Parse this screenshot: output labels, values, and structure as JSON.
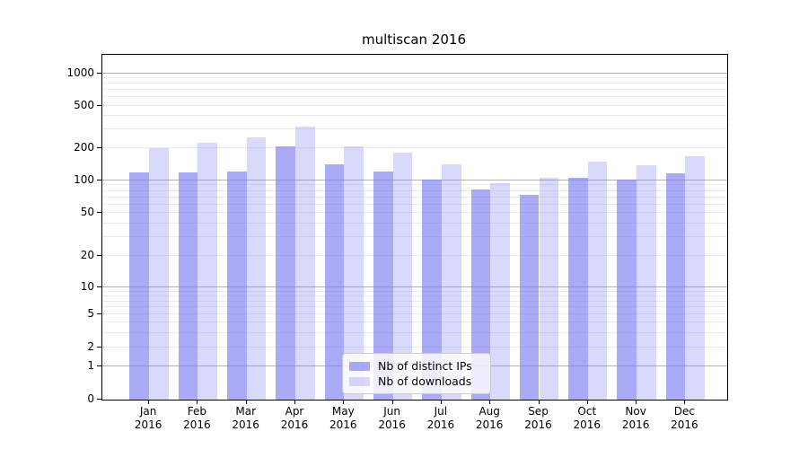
{
  "chart_data": {
    "type": "bar",
    "title": "multiscan 2016",
    "x_months": [
      "Jan",
      "Feb",
      "Mar",
      "Apr",
      "May",
      "Jun",
      "Jul",
      "Aug",
      "Sep",
      "Oct",
      "Nov",
      "Dec"
    ],
    "x_year": "2016",
    "series": [
      {
        "name": "Nb of distinct IPs",
        "color": "rgba(120,120,240,0.63)",
        "values": [
          120,
          120,
          122,
          206,
          141,
          121,
          102,
          83,
          74,
          107,
          102,
          117
        ]
      },
      {
        "name": "Nb of downloads",
        "color": "rgba(120,120,240,0.28)",
        "values": [
          201,
          225,
          251,
          320,
          206,
          182,
          142,
          95,
          107,
          150,
          140,
          168
        ]
      }
    ],
    "y_ticks": [
      0,
      1,
      2,
      5,
      10,
      20,
      50,
      100,
      200,
      500,
      1000
    ],
    "y_scale": "symlog",
    "ylim": [
      0,
      1400
    ],
    "grid": "major+minor",
    "legend_position": "lower center",
    "colors": {
      "major_grid": "#b3b3b3",
      "minor_grid": "#eaeaea",
      "axis": "#000000",
      "background": "#ffffff"
    }
  }
}
